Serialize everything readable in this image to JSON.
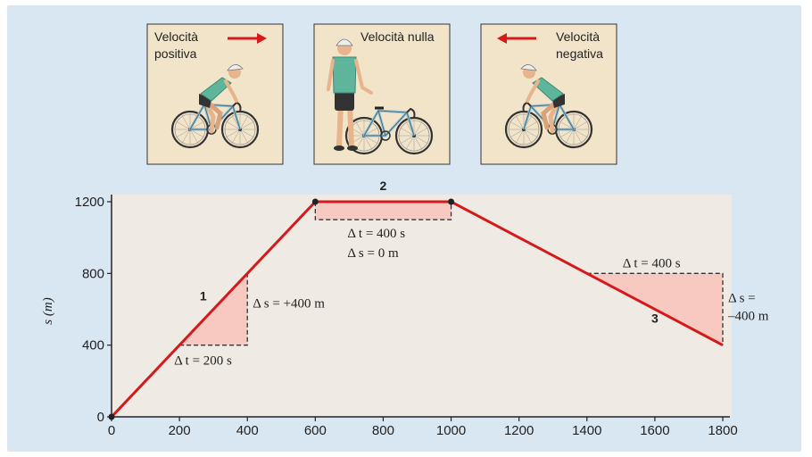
{
  "panels": [
    {
      "label_lines": [
        "Velocità",
        "positiva"
      ],
      "arrow": "right",
      "icon": "cyclist-riding-right-icon"
    },
    {
      "label_lines": [
        "Velocità nulla"
      ],
      "arrow": "none",
      "icon": "cyclist-standing-icon"
    },
    {
      "label_lines": [
        "Velocità",
        "negativa"
      ],
      "arrow": "left",
      "icon": "cyclist-riding-left-icon"
    }
  ],
  "colors": {
    "background": "#d9e7f3",
    "plot_bg": "#efebe4",
    "panel_bg": "#f2e4c9",
    "line": "#d7191c",
    "triangle_fill": "#f8c9c0",
    "jersey": "#5fb49c"
  },
  "chart_data": {
    "type": "line",
    "ylabel": "s (m)",
    "xlabel": "",
    "xlim": [
      0,
      1800
    ],
    "ylim": [
      0,
      1200
    ],
    "xticks": [
      0,
      200,
      400,
      600,
      800,
      1000,
      1200,
      1400,
      1600,
      1800
    ],
    "yticks": [
      0,
      400,
      800,
      1200
    ],
    "grid": false,
    "series": [
      {
        "x": [
          0,
          600,
          1000,
          1800
        ],
        "y": [
          0,
          1200,
          1200,
          400
        ]
      }
    ],
    "markers": [
      {
        "x": 600,
        "y": 1200
      },
      {
        "x": 1000,
        "y": 1200
      }
    ],
    "segment_labels": [
      {
        "text": "1",
        "x": 270,
        "y": 650
      },
      {
        "text": "2",
        "x": 800,
        "y": 1265
      },
      {
        "text": "3",
        "x": 1600,
        "y": 525
      }
    ],
    "triangles": [
      {
        "x0": 200,
        "x1": 400,
        "y0": 400,
        "y1": 800,
        "dt_label": "Δ t = 200 s",
        "ds_label": "Δ s = +400 m"
      },
      {
        "x0": 600,
        "x1": 1000,
        "y0": 1200,
        "y1": 1100,
        "dt_label": "Δ t = 400 s",
        "ds_label": "Δ s = 0 m"
      },
      {
        "x0": 1400,
        "x1": 1800,
        "y0": 800,
        "y1": 400,
        "dt_label": "Δ t = 400 s",
        "ds_label_lines": [
          "Δ s =",
          "–400 m"
        ]
      }
    ]
  }
}
